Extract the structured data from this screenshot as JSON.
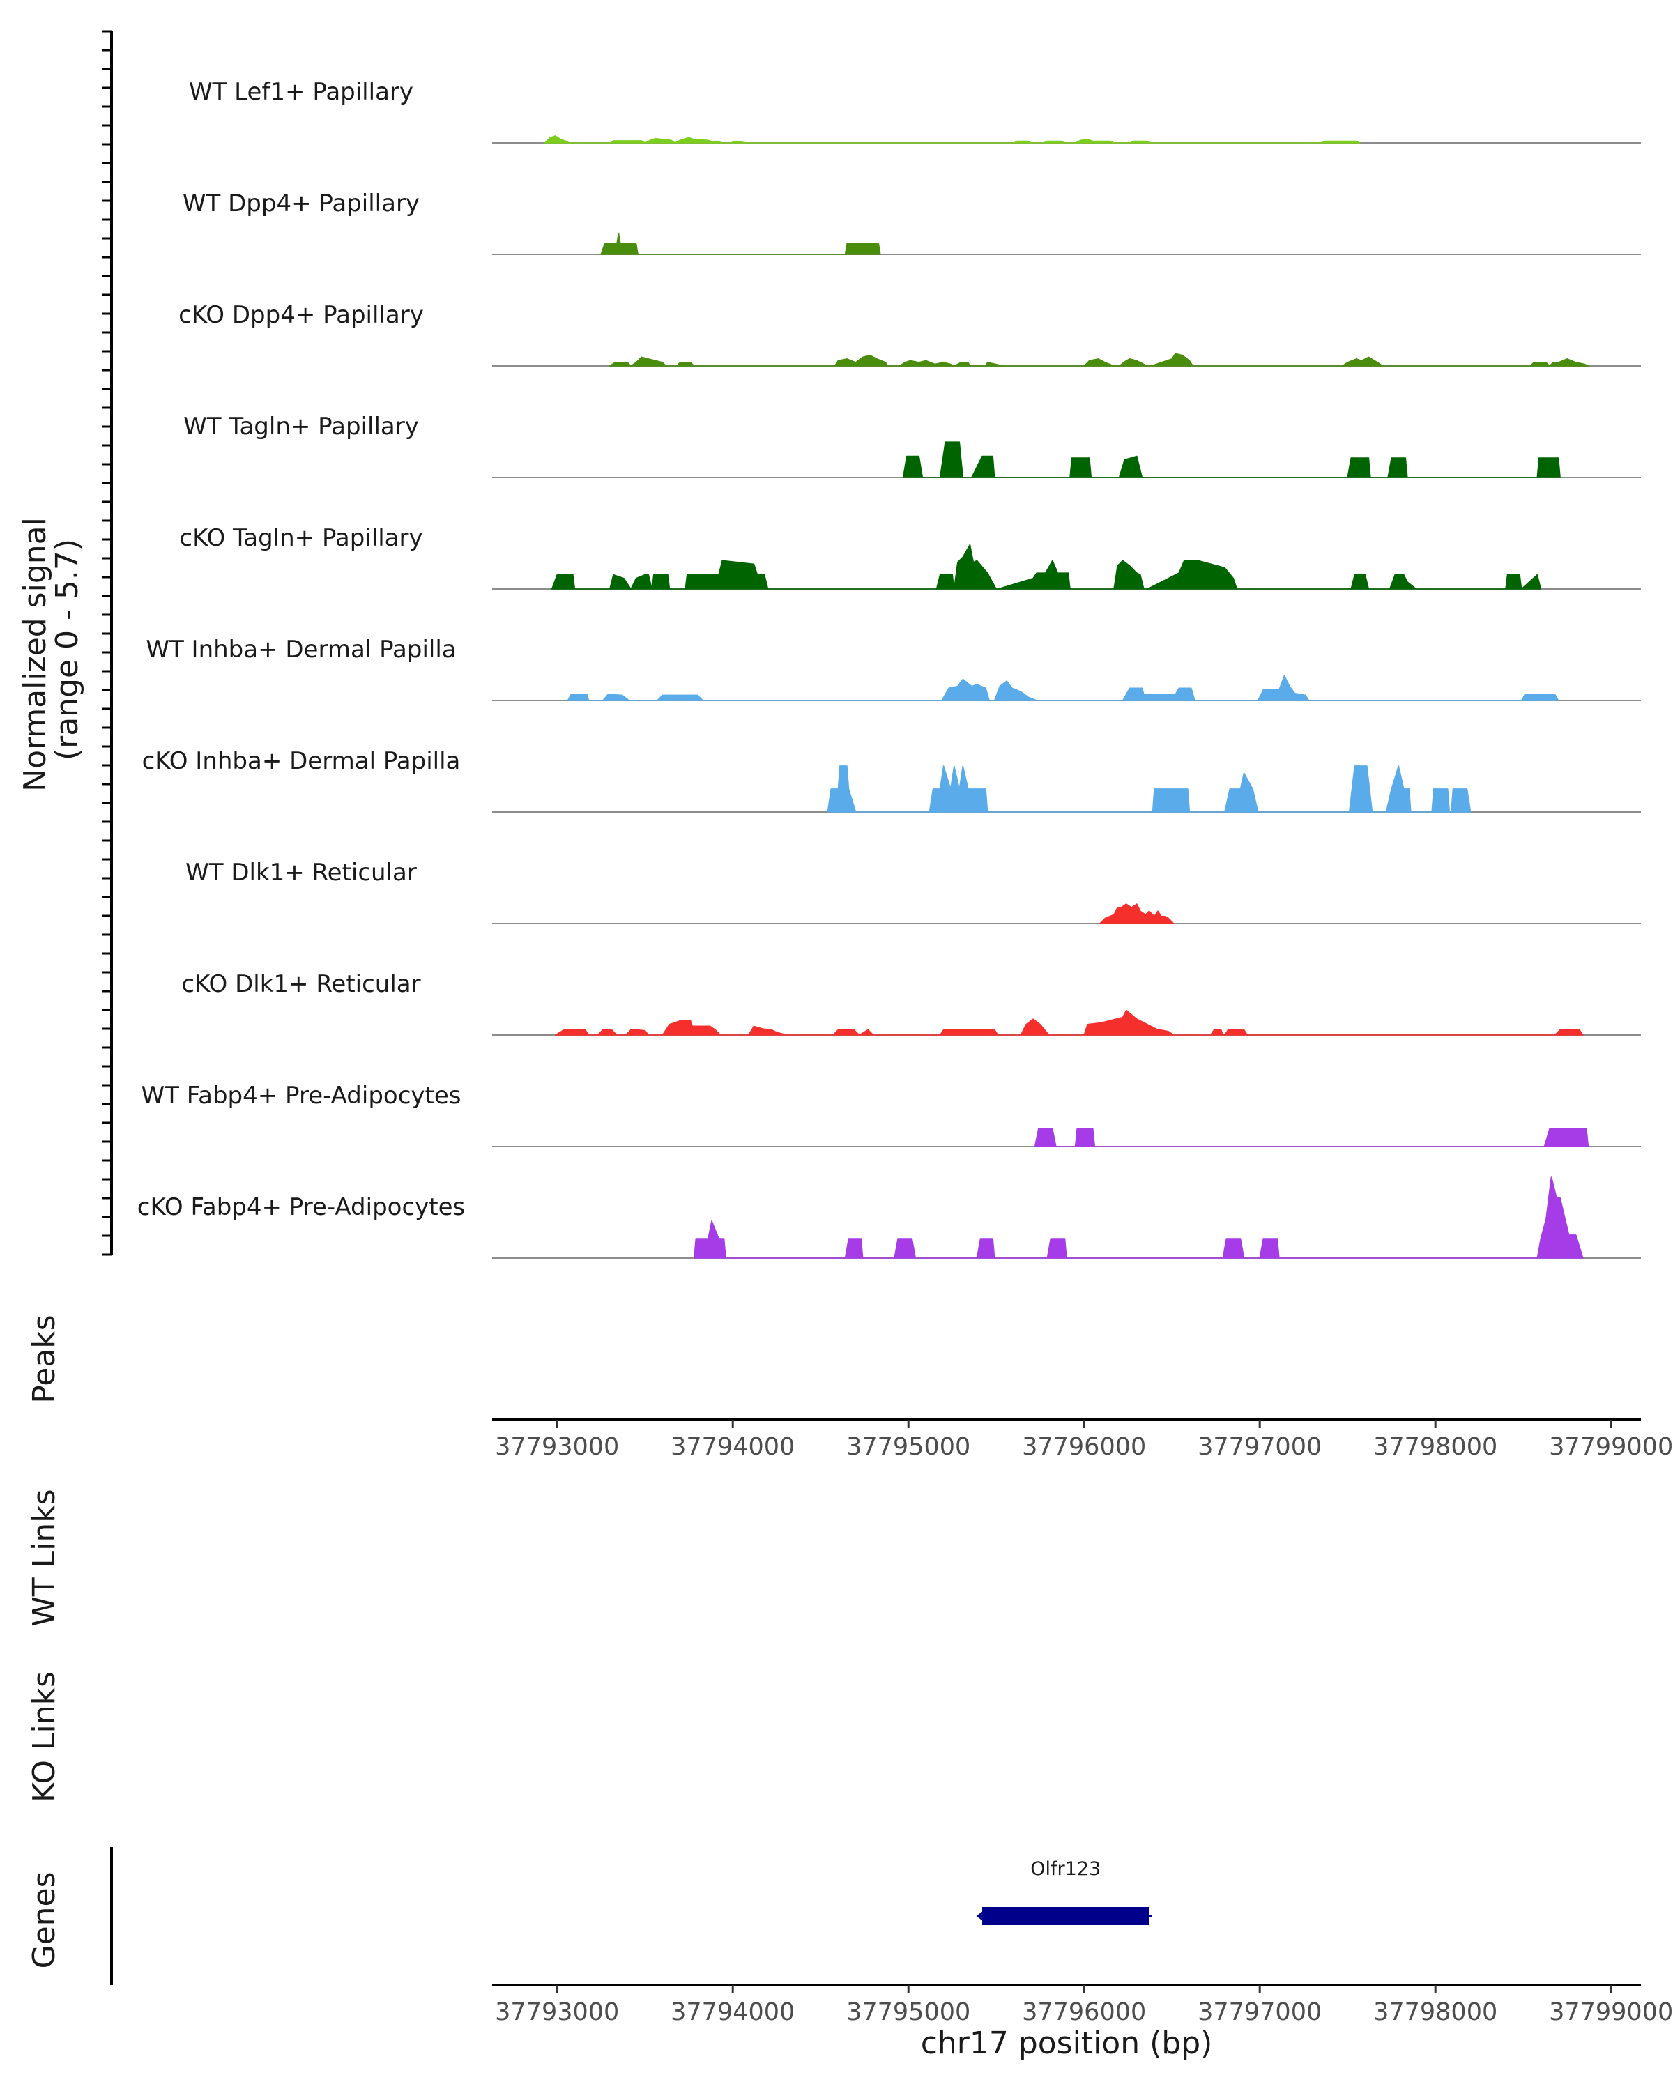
{
  "chart_data": {
    "type": "area",
    "title": "",
    "xlabel": "chr17 position (bp)",
    "ylabel": "Normalized signal\n(range 0 - 5.7)",
    "ylabel_lines": [
      "Normalized signal",
      "(range 0 - 5.7)"
    ],
    "ylim": [
      0,
      5.7
    ],
    "xlim": [
      37792630,
      37799170
    ],
    "x_ticks": [
      37793000,
      37794000,
      37795000,
      37796000,
      37797000,
      37798000,
      37799000
    ],
    "x_tick_labels": [
      "37793000",
      "37794000",
      "37795000",
      "37796000",
      "37797000",
      "37798000",
      "37799000"
    ],
    "panel_labels": {
      "peaks": "Peaks",
      "wt_links": "WT Links",
      "ko_links": "KO Links",
      "genes": "Genes"
    },
    "colors": {
      "lef1": "#7ccd1e",
      "dpp4": "#4a8c0c",
      "tagln": "#006400",
      "inhba": "#5aabea",
      "dlk1": "#f5302c",
      "fabp4": "#a63ce8",
      "gene": "#00008b",
      "axis": "#000000",
      "baseline": "#8c8c8c"
    },
    "tracks": [
      {
        "name": "WT Lef1+ Papillary",
        "color_key": "lef1",
        "x": [
          37792930,
          37792960,
          37792990,
          37793020,
          37793050,
          37793070,
          37793300,
          37793320,
          37793480,
          37793500,
          37793530,
          37793560,
          37793650,
          37793670,
          37793700,
          37793750,
          37793780,
          37793860,
          37793880,
          37793910,
          37793940,
          37793990,
          37794010,
          37794050,
          37794080,
          37795600,
          37795620,
          37795680,
          37795700,
          37795770,
          37795790,
          37795870,
          37795890,
          37795950,
          37795980,
          37796020,
          37796050,
          37796150,
          37796170,
          37796260,
          37796280,
          37796360,
          37796380,
          37796450,
          37797350,
          37797370,
          37797550,
          37797570
        ],
        "y": [
          0,
          0.3,
          0.4,
          0.2,
          0.1,
          0,
          0,
          0.12,
          0.12,
          0,
          0.15,
          0.25,
          0.15,
          0,
          0.15,
          0.3,
          0.2,
          0.15,
          0.08,
          0.1,
          0,
          0,
          0.1,
          0.05,
          0,
          0,
          0.1,
          0.1,
          0,
          0,
          0.1,
          0.1,
          0,
          0,
          0.15,
          0.2,
          0.1,
          0.1,
          0,
          0,
          0.1,
          0.1,
          0,
          0,
          0,
          0.1,
          0.1,
          0
        ]
      },
      {
        "name": "WT Dpp4+ Papillary",
        "color_key": "dpp4",
        "x": [
          37793250,
          37793270,
          37793340,
          37793350,
          37793360,
          37793450,
          37793460,
          37794640,
          37794650,
          37794830,
          37794840
        ],
        "y": [
          0,
          0.6,
          0.6,
          1.2,
          0.6,
          0.6,
          0,
          0,
          0.6,
          0.6,
          0
        ]
      },
      {
        "name": "cKO Dpp4+ Papillary",
        "color_key": "dpp4",
        "x": [
          37793300,
          37793330,
          37793400,
          37793420,
          37793450,
          37793480,
          37793520,
          37793560,
          37793600,
          37793620,
          37793680,
          37793700,
          37793760,
          37793780,
          37794580,
          37794600,
          37794650,
          37794700,
          37794740,
          37794780,
          37794820,
          37794870,
          37794880,
          37794950,
          37794980,
          37795010,
          37795060,
          37795100,
          37795150,
          37795200,
          37795240,
          37795260,
          37795300,
          37795340,
          37795350,
          37795440,
          37795450,
          37795540,
          37796000,
          37796030,
          37796080,
          37796120,
          37796170,
          37796200,
          37796240,
          37796260,
          37796300,
          37796360,
          37796380,
          37796500,
          37796520,
          37796560,
          37796600,
          37796620,
          37797470,
          37797500,
          37797550,
          37797580,
          37797620,
          37797670,
          37797700,
          37798540,
          37798560,
          37798630,
          37798650,
          37798670,
          37798700,
          37798750,
          37798800,
          37798850,
          37798870
        ],
        "y": [
          0,
          0.2,
          0.2,
          0,
          0.2,
          0.5,
          0.4,
          0.3,
          0.2,
          0,
          0,
          0.2,
          0.2,
          0,
          0,
          0.3,
          0.4,
          0.2,
          0.5,
          0.6,
          0.4,
          0.2,
          0,
          0,
          0.2,
          0.3,
          0.2,
          0.3,
          0.1,
          0.2,
          0.1,
          0,
          0.2,
          0.2,
          0,
          0,
          0.2,
          0,
          0,
          0.3,
          0.4,
          0.2,
          0,
          0,
          0.3,
          0.4,
          0.3,
          0,
          0,
          0.4,
          0.7,
          0.6,
          0.3,
          0,
          0,
          0.2,
          0.4,
          0.3,
          0.5,
          0.2,
          0,
          0,
          0.2,
          0.2,
          0,
          0.2,
          0.2,
          0.4,
          0.2,
          0.1,
          0
        ]
      },
      {
        "name": "WT Tagln+ Papillary",
        "color_key": "tagln",
        "x": [
          37794970,
          37794990,
          37795060,
          37795080,
          37795180,
          37795210,
          37795290,
          37795310,
          37795360,
          37795420,
          37795480,
          37795490,
          37795920,
          37795930,
          37796030,
          37796040,
          37796200,
          37796230,
          37796300,
          37796330,
          37797500,
          37797520,
          37797620,
          37797630,
          37797730,
          37797750,
          37797830,
          37797840,
          37798580,
          37798590,
          37798700,
          37798710
        ],
        "y": [
          0,
          1.2,
          1.2,
          0,
          0,
          2.0,
          2.0,
          0,
          0,
          1.2,
          1.2,
          0,
          0,
          1.1,
          1.1,
          0,
          0,
          1.0,
          1.2,
          0,
          0,
          1.1,
          1.1,
          0,
          0,
          1.1,
          1.1,
          0,
          0,
          1.1,
          1.1,
          0
        ]
      },
      {
        "name": "cKO Tagln+ Papillary",
        "color_key": "tagln",
        "x": [
          37792970,
          37793000,
          37793090,
          37793100,
          37793300,
          37793320,
          37793380,
          37793420,
          37793450,
          37793500,
          37793520,
          37793540,
          37793550,
          37793630,
          37793640,
          37793730,
          37793740,
          37793920,
          37793940,
          37794120,
          37794140,
          37794180,
          37794200,
          37795160,
          37795180,
          37795250,
          37795260,
          37795280,
          37795310,
          37795350,
          37795370,
          37795390,
          37795450,
          37795500,
          37795510,
          37795710,
          37795730,
          37795780,
          37795820,
          37795850,
          37795910,
          37795920,
          37796170,
          37796190,
          37796220,
          37796260,
          37796300,
          37796320,
          37796340,
          37796360,
          37796540,
          37796570,
          37796620,
          37796650,
          37796800,
          37796850,
          37796870,
          37797520,
          37797540,
          37797600,
          37797620,
          37797740,
          37797770,
          37797820,
          37797840,
          37797890,
          37798400,
          37798410,
          37798480,
          37798490,
          37798580,
          37798600
        ],
        "y": [
          0,
          0.8,
          0.8,
          0,
          0,
          0.8,
          0.6,
          0,
          0.6,
          0.8,
          0.8,
          0,
          0.8,
          0.8,
          0,
          0,
          0.8,
          0.8,
          1.6,
          1.4,
          0.8,
          0.8,
          0,
          0,
          0.8,
          0.8,
          0,
          1.5,
          1.8,
          2.5,
          1.5,
          1.6,
          0.9,
          0,
          0,
          0.6,
          0.9,
          0.9,
          1.6,
          0.9,
          0.9,
          0,
          0,
          1.3,
          1.6,
          1.3,
          0.9,
          0.8,
          0,
          0,
          0.9,
          1.6,
          1.6,
          1.6,
          1.2,
          0.6,
          0,
          0,
          0.8,
          0.8,
          0,
          0,
          0.8,
          0.8,
          0.4,
          0,
          0,
          0.8,
          0.8,
          0,
          0.8,
          0
        ]
      },
      {
        "name": "WT Inhba+ Dermal Papilla",
        "color_key": "inhba",
        "x": [
          37793060,
          37793080,
          37793170,
          37793180,
          37793260,
          37793290,
          37793370,
          37793410,
          37793570,
          37793600,
          37793800,
          37793830,
          37795190,
          37795230,
          37795280,
          37795310,
          37795360,
          37795390,
          37795440,
          37795460,
          37795490,
          37795520,
          37795560,
          37795590,
          37795640,
          37795680,
          37795730,
          37796220,
          37796260,
          37796330,
          37796340,
          37796520,
          37796540,
          37796610,
          37796630,
          37796990,
          37797020,
          37797110,
          37797140,
          37797170,
          37797200,
          37797260,
          37797280,
          37798490,
          37798510,
          37798680,
          37798700
        ],
        "y": [
          0,
          0.35,
          0.35,
          0,
          0,
          0.35,
          0.3,
          0,
          0,
          0.3,
          0.3,
          0,
          0,
          0.7,
          0.8,
          1.2,
          0.8,
          0.9,
          0.7,
          0,
          0,
          0.8,
          1.1,
          0.7,
          0.5,
          0.2,
          0,
          0,
          0.7,
          0.7,
          0.35,
          0.35,
          0.7,
          0.7,
          0,
          0,
          0.6,
          0.6,
          1.4,
          0.8,
          0.4,
          0.3,
          0,
          0,
          0.35,
          0.35,
          0
        ]
      },
      {
        "name": "cKO Inhba+ Dermal Papilla",
        "color_key": "inhba",
        "x": [
          37794540,
          37794560,
          37794600,
          37794610,
          37794650,
          37794660,
          37794700,
          37795120,
          37795140,
          37795180,
          37795200,
          37795240,
          37795260,
          37795290,
          37795310,
          37795340,
          37795370,
          37795400,
          37795440,
          37795450,
          37796390,
          37796400,
          37796590,
          37796600,
          37796800,
          37796830,
          37796890,
          37796910,
          37796960,
          37796990,
          37797510,
          37797540,
          37797610,
          37797640,
          37797720,
          37797750,
          37797790,
          37797820,
          37797850,
          37797860,
          37797980,
          37797990,
          37798070,
          37798080,
          37798090,
          37798100,
          37798180,
          37798200
        ],
        "y": [
          0,
          1.3,
          1.3,
          2.6,
          2.6,
          1.3,
          0,
          0,
          1.3,
          1.3,
          2.6,
          1.3,
          2.6,
          1.3,
          2.6,
          1.3,
          1.3,
          1.3,
          1.3,
          0,
          0,
          1.3,
          1.3,
          0,
          0,
          1.3,
          1.3,
          2.2,
          1.3,
          0,
          0,
          2.6,
          2.6,
          0,
          0,
          1.3,
          2.6,
          1.3,
          1.3,
          0,
          0,
          1.3,
          1.3,
          0,
          0,
          1.3,
          1.3,
          0
        ]
      },
      {
        "name": "WT Dlk1+ Reticular",
        "color_key": "dlk1",
        "x": [
          37796090,
          37796120,
          37796170,
          37796190,
          37796210,
          37796240,
          37796270,
          37796300,
          37796320,
          37796350,
          37796370,
          37796400,
          37796420,
          37796440,
          37796460,
          37796480,
          37796510
        ],
        "y": [
          0,
          0.3,
          0.5,
          0.9,
          0.9,
          1.1,
          0.9,
          1.1,
          0.7,
          0.5,
          0.7,
          0.4,
          0.7,
          0.4,
          0.4,
          0.3,
          0
        ]
      },
      {
        "name": "cKO Dlk1+ Reticular",
        "color_key": "dlk1",
        "x": [
          37792990,
          37793040,
          37793160,
          37793180,
          37793230,
          37793260,
          37793310,
          37793340,
          37793390,
          37793420,
          37793450,
          37793500,
          37793520,
          37793600,
          37793640,
          37793700,
          37793760,
          37793770,
          37793870,
          37793900,
          37793930,
          37794090,
          37794120,
          37794170,
          37794220,
          37794240,
          37794270,
          37794310,
          37794570,
          37794600,
          37794690,
          37794720,
          37794770,
          37794800,
          37795180,
          37795200,
          37795280,
          37795300,
          37795490,
          37795510,
          37795640,
          37795670,
          37795710,
          37795750,
          37795800,
          37796000,
          37796020,
          37796100,
          37796180,
          37796220,
          37796240,
          37796300,
          37796360,
          37796420,
          37796430,
          37796480,
          37796510,
          37796720,
          37796740,
          37796780,
          37796790,
          37796800,
          37796820,
          37796910,
          37796930,
          37798680,
          37798710,
          37798820,
          37798840
        ],
        "y": [
          0,
          0.3,
          0.3,
          0,
          0,
          0.3,
          0.3,
          0,
          0,
          0.3,
          0.3,
          0.25,
          0,
          0,
          0.6,
          0.8,
          0.8,
          0.5,
          0.5,
          0.3,
          0,
          0,
          0.5,
          0.35,
          0.3,
          0.2,
          0.1,
          0,
          0,
          0.3,
          0.3,
          0,
          0.3,
          0,
          0,
          0.3,
          0.3,
          0.3,
          0.3,
          0,
          0,
          0.6,
          0.9,
          0.6,
          0,
          0,
          0.6,
          0.7,
          0.9,
          1.0,
          1.4,
          0.9,
          0.6,
          0.3,
          0.3,
          0.2,
          0,
          0,
          0.3,
          0.3,
          0,
          0,
          0.3,
          0.3,
          0,
          0,
          0.3,
          0.3,
          0
        ]
      },
      {
        "name": "WT Fabp4+ Pre-Adipocytes",
        "color_key": "fabp4",
        "x": [
          37795720,
          37795740,
          37795820,
          37795840,
          37795950,
          37795960,
          37796050,
          37796060,
          37798620,
          37798650,
          37798860,
          37798870
        ],
        "y": [
          0,
          1.0,
          1.0,
          0,
          0,
          1.0,
          1.0,
          0,
          0,
          1.0,
          1.0,
          0
        ]
      },
      {
        "name": "cKO Fabp4+ Pre-Adipocytes",
        "color_key": "fabp4",
        "x": [
          37793780,
          37793790,
          37793860,
          37793880,
          37793920,
          37793950,
          37793960,
          37794640,
          37794660,
          37794730,
          37794740,
          37794920,
          37794940,
          37795020,
          37795040,
          37795390,
          37795410,
          37795480,
          37795490,
          37795790,
          37795810,
          37795890,
          37795900,
          37796790,
          37796810,
          37796890,
          37796910,
          37797000,
          37797020,
          37797100,
          37797110,
          37798580,
          37798600,
          37798630,
          37798660,
          37798690,
          37798710,
          37798760,
          37798800,
          37798840
        ],
        "y": [
          0,
          1.1,
          1.1,
          2.1,
          1.1,
          1.1,
          0,
          0,
          1.1,
          1.1,
          0,
          0,
          1.1,
          1.1,
          0,
          0,
          1.1,
          1.1,
          0,
          0,
          1.1,
          1.1,
          0,
          0,
          1.1,
          1.1,
          0,
          0,
          1.1,
          1.1,
          0,
          0,
          1.1,
          2.2,
          4.6,
          3.4,
          3.4,
          1.3,
          1.3,
          0
        ]
      }
    ],
    "genes": [
      {
        "name": "Olfr123",
        "start": 37795420,
        "end": 37796370,
        "strand": "-"
      }
    ]
  }
}
